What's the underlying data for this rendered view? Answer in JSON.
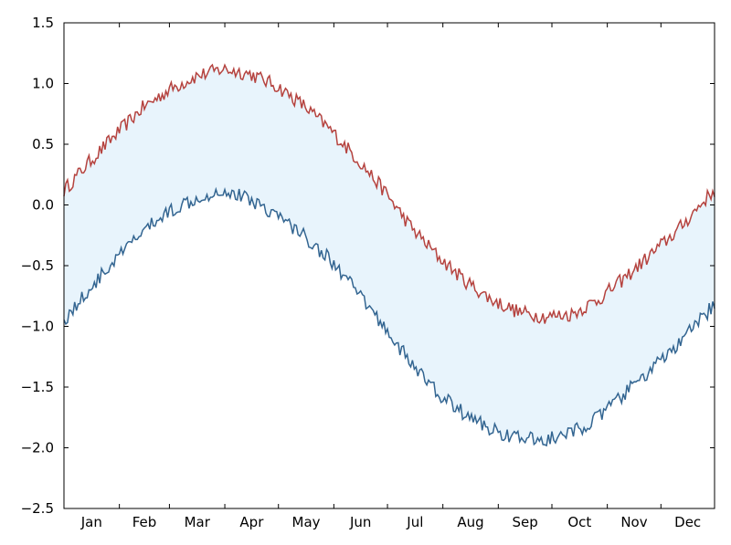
{
  "chart_data": {
    "type": "line",
    "title": "",
    "xlabel": "",
    "ylabel": "",
    "x_tick_labels": [
      "Jan",
      "Feb",
      "Mar",
      "Apr",
      "May",
      "Jun",
      "Jul",
      "Aug",
      "Sep",
      "Oct",
      "Nov",
      "Dec"
    ],
    "y_ticks": [
      -2.5,
      -2.0,
      -1.5,
      -1.0,
      -0.5,
      0.0,
      0.5,
      1.0,
      1.5
    ],
    "y_tick_labels": [
      "−2.5",
      "−2.0",
      "−1.5",
      "−1.0",
      "−0.5",
      "0.0",
      "0.5",
      "1.0",
      "1.5"
    ],
    "xlim": [
      1,
      365
    ],
    "ylim": [
      -2.5,
      1.5
    ],
    "grid": false,
    "legend": "none",
    "fill_between": true,
    "colors": {
      "upper": "#b5433f",
      "lower": "#336591",
      "fill": "#e8f4fc"
    },
    "series": [
      {
        "role": "upper",
        "x": [
          1,
          15,
          30,
          45,
          60,
          75,
          90,
          105,
          120,
          135,
          150,
          165,
          180,
          195,
          210,
          225,
          240,
          255,
          270,
          285,
          300,
          315,
          330,
          345,
          360,
          365
        ],
        "values": [
          0.12,
          0.35,
          0.58,
          0.8,
          0.95,
          1.06,
          1.12,
          1.08,
          0.98,
          0.82,
          0.62,
          0.38,
          0.12,
          -0.18,
          -0.42,
          -0.62,
          -0.78,
          -0.88,
          -0.92,
          -0.9,
          -0.78,
          -0.6,
          -0.4,
          -0.2,
          0.05,
          0.12
        ]
      },
      {
        "role": "lower",
        "x": [
          1,
          15,
          30,
          45,
          60,
          75,
          90,
          105,
          120,
          135,
          150,
          165,
          180,
          195,
          210,
          225,
          240,
          255,
          270,
          285,
          300,
          315,
          330,
          345,
          360,
          365
        ],
        "values": [
          -0.95,
          -0.7,
          -0.45,
          -0.22,
          -0.05,
          0.06,
          0.12,
          0.05,
          -0.08,
          -0.25,
          -0.45,
          -0.72,
          -1.0,
          -1.3,
          -1.55,
          -1.72,
          -1.85,
          -1.92,
          -1.94,
          -1.88,
          -1.75,
          -1.55,
          -1.35,
          -1.15,
          -0.9,
          -0.82
        ]
      }
    ]
  }
}
